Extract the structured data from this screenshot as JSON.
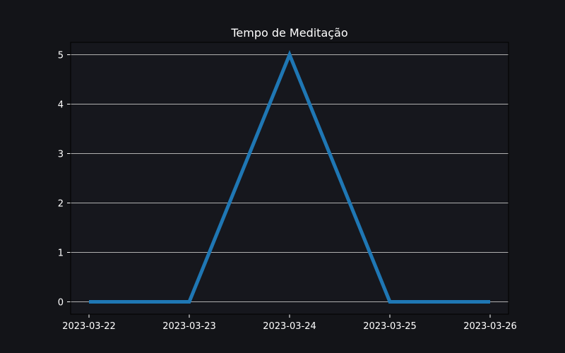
{
  "chart_data": {
    "type": "line",
    "title": "Tempo de Meditação",
    "xlabel": "",
    "ylabel": "",
    "x": [
      "2023-03-22",
      "2023-03-23",
      "2023-03-24",
      "2023-03-25",
      "2023-03-26"
    ],
    "series": [
      {
        "values": [
          0,
          0,
          5,
          0,
          0
        ]
      }
    ],
    "ylim": [
      -0.25,
      5.25
    ],
    "yticks": [
      0,
      1,
      2,
      3,
      4,
      5
    ],
    "xticks": [
      "2023-03-22",
      "2023-03-23",
      "2023-03-24",
      "2023-03-25",
      "2023-03-26"
    ],
    "grid": "horizontal",
    "colors": {
      "background": "#131418",
      "plot_background": "#16171d",
      "line": "#1f77b4",
      "grid": "#b0b0b0",
      "axis": "#000000",
      "text": "#ffffff"
    }
  }
}
